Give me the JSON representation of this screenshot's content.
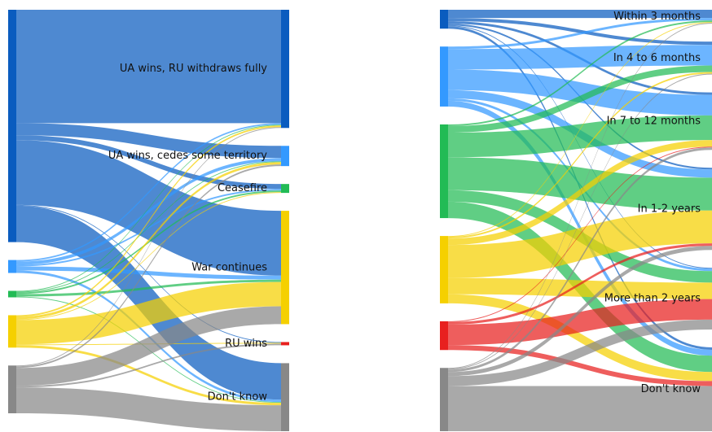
{
  "chart_data": [
    {
      "type": "sankey",
      "sources": [
        {
          "color": "#0a5cbf"
        },
        {
          "color": "#3399ff"
        },
        {
          "color": "#22bb55"
        },
        {
          "color": "#f5d000"
        },
        {
          "color": "#888888"
        }
      ],
      "targets": [
        {
          "label": "UA wins, RU withdraws fully",
          "color": "#0a5cbf"
        },
        {
          "label": "UA wins, cedes some territory",
          "color": "#3399ff"
        },
        {
          "label": "Ceasefire",
          "color": "#22bb55"
        },
        {
          "label": "War continues",
          "color": "#f5d000"
        },
        {
          "label": "RU wins",
          "color": "#e8201f"
        },
        {
          "label": "Don't know",
          "color": "#888888"
        }
      ],
      "links": [
        {
          "source": 0,
          "target": 0,
          "value": 140
        },
        {
          "source": 0,
          "target": 1,
          "value": 15
        },
        {
          "source": 0,
          "target": 2,
          "value": 6
        },
        {
          "source": 0,
          "target": 3,
          "value": 80
        },
        {
          "source": 0,
          "target": 4,
          "value": 1
        },
        {
          "source": 0,
          "target": 5,
          "value": 45
        },
        {
          "source": 1,
          "target": 0,
          "value": 2
        },
        {
          "source": 1,
          "target": 1,
          "value": 4
        },
        {
          "source": 1,
          "target": 2,
          "value": 2
        },
        {
          "source": 1,
          "target": 3,
          "value": 5
        },
        {
          "source": 1,
          "target": 5,
          "value": 3
        },
        {
          "source": 2,
          "target": 0,
          "value": 1
        },
        {
          "source": 2,
          "target": 1,
          "value": 1
        },
        {
          "source": 2,
          "target": 2,
          "value": 2
        },
        {
          "source": 2,
          "target": 3,
          "value": 3
        },
        {
          "source": 2,
          "target": 5,
          "value": 1
        },
        {
          "source": 3,
          "target": 0,
          "value": 2
        },
        {
          "source": 3,
          "target": 1,
          "value": 3
        },
        {
          "source": 3,
          "target": 2,
          "value": 1
        },
        {
          "source": 3,
          "target": 3,
          "value": 30
        },
        {
          "source": 3,
          "target": 4,
          "value": 1
        },
        {
          "source": 3,
          "target": 5,
          "value": 3
        },
        {
          "source": 4,
          "target": 0,
          "value": 1
        },
        {
          "source": 4,
          "target": 1,
          "value": 2
        },
        {
          "source": 4,
          "target": 3,
          "value": 22
        },
        {
          "source": 4,
          "target": 4,
          "value": 2
        },
        {
          "source": 4,
          "target": 5,
          "value": 32
        }
      ]
    },
    {
      "type": "sankey",
      "sources": [
        {
          "color": "#0a5cbf"
        },
        {
          "color": "#3399ff"
        },
        {
          "color": "#22bb55"
        },
        {
          "color": "#f5d000"
        },
        {
          "color": "#e8201f"
        },
        {
          "color": "#888888"
        }
      ],
      "targets": [
        {
          "label": "Within 3 months",
          "color": "#0a5cbf"
        },
        {
          "label": "In 4 to 6 months",
          "color": "#3399ff"
        },
        {
          "label": "In 7 to 12 months",
          "color": "#22bb55"
        },
        {
          "label": "In 1-2 years",
          "color": "#f5d000"
        },
        {
          "label": "More than 2 years",
          "color": "#e8201f"
        },
        {
          "label": "Don't know",
          "color": "#888888"
        }
      ],
      "links": [
        {
          "source": 0,
          "target": 0,
          "value": 10
        },
        {
          "source": 0,
          "target": 1,
          "value": 4
        },
        {
          "source": 0,
          "target": 2,
          "value": 3
        },
        {
          "source": 0,
          "target": 3,
          "value": 2
        },
        {
          "source": 0,
          "target": 4,
          "value": 1
        },
        {
          "source": 0,
          "target": 5,
          "value": 3
        },
        {
          "source": 1,
          "target": 0,
          "value": 3
        },
        {
          "source": 1,
          "target": 1,
          "value": 25
        },
        {
          "source": 1,
          "target": 2,
          "value": 25
        },
        {
          "source": 1,
          "target": 3,
          "value": 10
        },
        {
          "source": 1,
          "target": 4,
          "value": 3
        },
        {
          "source": 1,
          "target": 5,
          "value": 7
        },
        {
          "source": 2,
          "target": 0,
          "value": 2
        },
        {
          "source": 2,
          "target": 1,
          "value": 8
        },
        {
          "source": 2,
          "target": 2,
          "value": 30
        },
        {
          "source": 2,
          "target": 3,
          "value": 40
        },
        {
          "source": 2,
          "target": 4,
          "value": 14
        },
        {
          "source": 2,
          "target": 5,
          "value": 20
        },
        {
          "source": 3,
          "target": 0,
          "value": 1
        },
        {
          "source": 3,
          "target": 1,
          "value": 2
        },
        {
          "source": 3,
          "target": 2,
          "value": 8
        },
        {
          "source": 3,
          "target": 3,
          "value": 40
        },
        {
          "source": 3,
          "target": 4,
          "value": 20
        },
        {
          "source": 3,
          "target": 5,
          "value": 11
        },
        {
          "source": 4,
          "target": 2,
          "value": 1
        },
        {
          "source": 4,
          "target": 3,
          "value": 3
        },
        {
          "source": 4,
          "target": 4,
          "value": 25
        },
        {
          "source": 4,
          "target": 5,
          "value": 6
        },
        {
          "source": 5,
          "target": 0,
          "value": 1
        },
        {
          "source": 5,
          "target": 1,
          "value": 1
        },
        {
          "source": 5,
          "target": 2,
          "value": 3
        },
        {
          "source": 5,
          "target": 3,
          "value": 5
        },
        {
          "source": 5,
          "target": 4,
          "value": 12
        },
        {
          "source": 5,
          "target": 5,
          "value": 55
        }
      ]
    }
  ]
}
